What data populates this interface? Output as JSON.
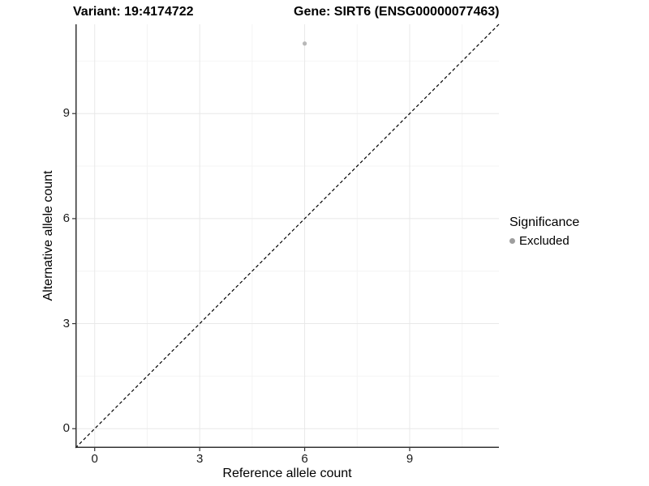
{
  "titles": {
    "variant": "Variant: 19:4174722",
    "gene": "Gene: SIRT6 (ENSG00000077463)"
  },
  "chart_data": {
    "type": "scatter",
    "title": "Variant: 19:4174722   Gene: SIRT6 (ENSG00000077463)",
    "xlabel": "Reference allele count",
    "ylabel": "Alternative allele count",
    "points": [
      {
        "x": 6,
        "y": 11,
        "series": "Excluded"
      }
    ],
    "point_color": "#b8b8b8",
    "point_radius": 2.6,
    "x_ticks": [
      0,
      3,
      6,
      9
    ],
    "y_ticks": [
      0,
      3,
      6,
      9
    ],
    "x_minor_ticks": [
      1.5,
      4.5,
      7.5,
      10.5
    ],
    "y_minor_ticks": [
      1.5,
      4.5,
      7.5,
      10.5
    ],
    "xlim": [
      -0.55,
      11.55
    ],
    "ylim": [
      -0.55,
      11.55
    ],
    "grid": "major+minor",
    "reference_line": {
      "type": "identity",
      "style": "dashed",
      "color": "#000000"
    },
    "legend": {
      "title": "Significance",
      "position": "right",
      "items": [
        {
          "label": "Excluded",
          "color": "#9e9e9e"
        }
      ]
    }
  },
  "colors": {
    "background": "#ffffff",
    "axis_line": "#333333",
    "grid_major": "#e8e8e8",
    "grid_minor": "#f4f4f4",
    "text": "#000000",
    "tick_text": "#1a1a1a"
  }
}
